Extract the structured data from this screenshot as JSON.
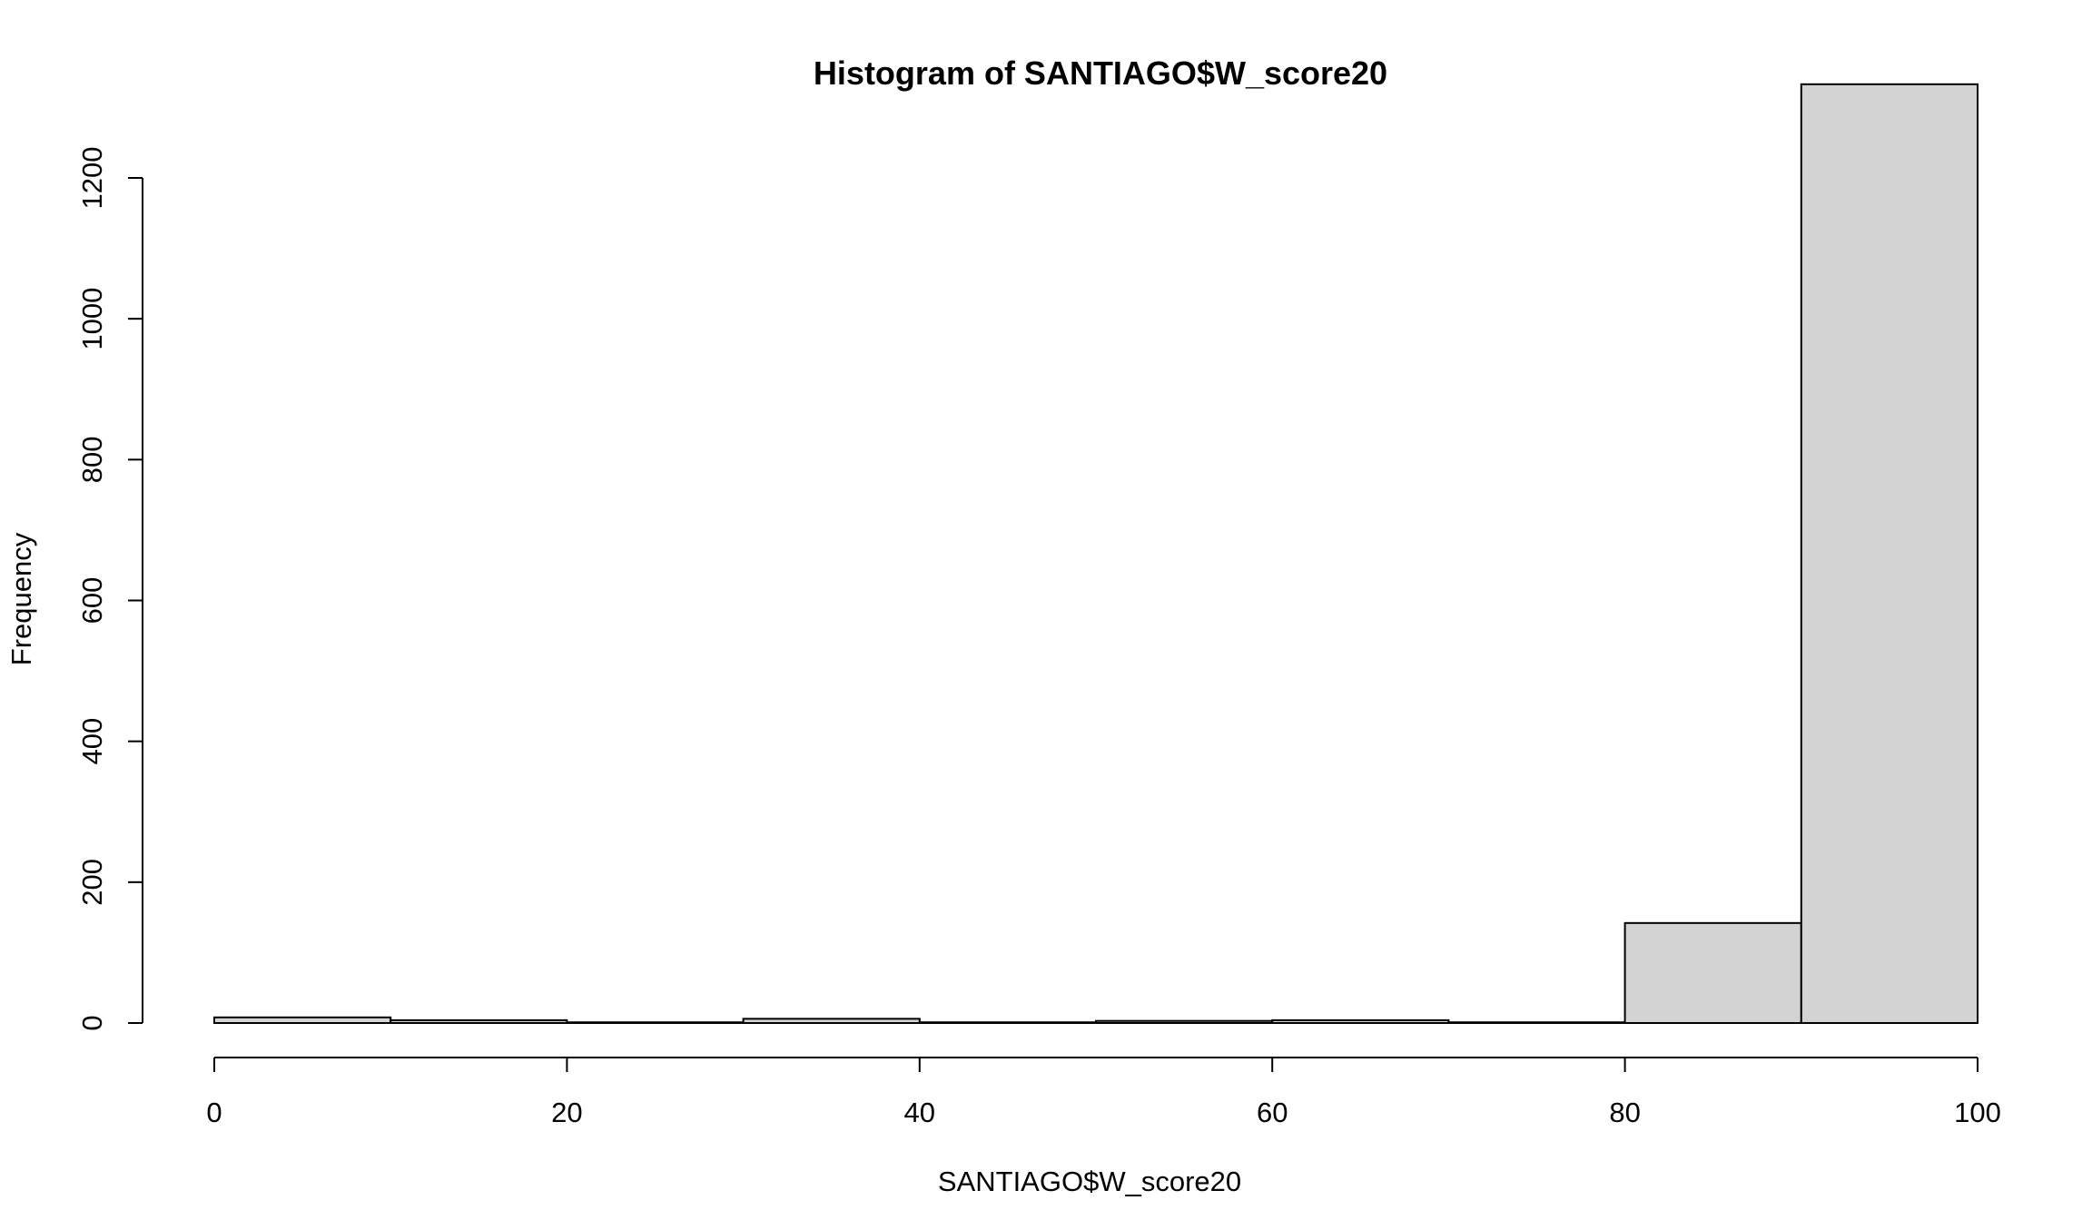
{
  "chart_data": {
    "type": "bar",
    "title": "Histogram of SANTIAGO$W_score20",
    "xlabel": "SANTIAGO$W_score20",
    "ylabel": "Frequency",
    "bin_edges": [
      0,
      10,
      20,
      30,
      40,
      50,
      60,
      70,
      80,
      90,
      100
    ],
    "values": [
      8,
      4,
      1,
      6,
      1,
      3,
      4,
      1,
      142,
      1333
    ],
    "xlim": [
      0,
      100
    ],
    "ylim": [
      0,
      1333
    ],
    "x_ticks": [
      0,
      20,
      40,
      60,
      80,
      100
    ],
    "x_tick_labels": [
      "0",
      "20",
      "40",
      "60",
      "80",
      "100"
    ],
    "y_ticks": [
      0,
      200,
      400,
      600,
      800,
      1000,
      1200
    ],
    "y_tick_labels": [
      "0",
      "200",
      "400",
      "600",
      "800",
      "1000",
      "1200"
    ],
    "bar_color": "#d3d3d3",
    "grid": false,
    "legend": "none"
  }
}
